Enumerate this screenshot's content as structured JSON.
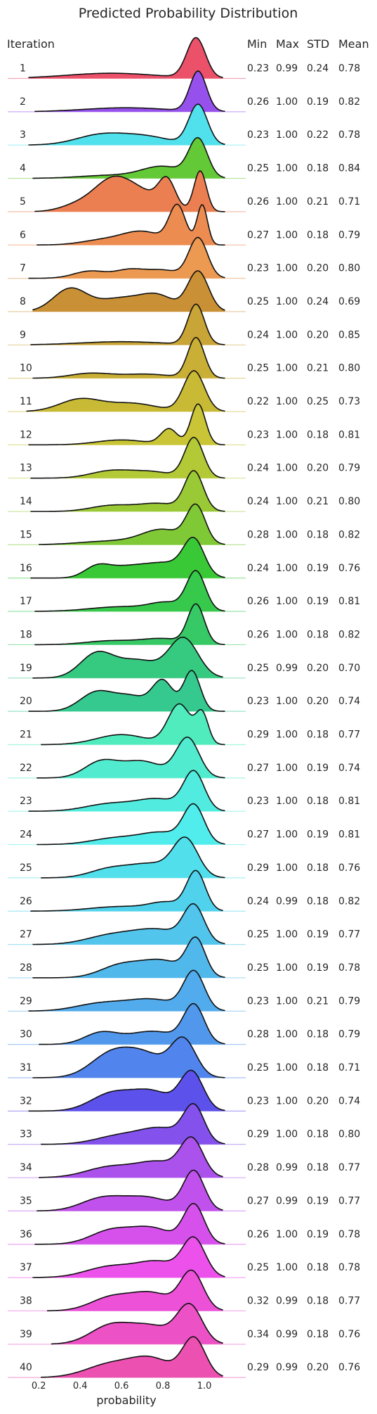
{
  "chart_data": {
    "type": "ridgeline",
    "title": "Predicted Probability Distribution",
    "xlabel": "probability",
    "row_header": "Iteration",
    "stat_headers": [
      "Min",
      "Max",
      "STD",
      "Mean"
    ],
    "x_ticks": [
      "0.2",
      "0.4",
      "0.6",
      "0.8",
      "1.0"
    ],
    "x_tick_values": [
      0.2,
      0.4,
      0.6,
      0.8,
      1.0
    ],
    "xlim": [
      0.05,
      1.2
    ],
    "palette": "husl (red → orange → olive → green → teal → blue → violet → pink)",
    "rows": [
      {
        "iteration": "1",
        "min": "0.23",
        "max": "0.99",
        "std": "0.24",
        "mean": "0.78",
        "peaks": [
          [
            0.96,
            0.045,
            1.0
          ],
          [
            0.55,
            0.22,
            0.13
          ]
        ]
      },
      {
        "iteration": "2",
        "min": "0.26",
        "max": "1.00",
        "std": "0.19",
        "mean": "0.82",
        "peaks": [
          [
            0.97,
            0.04,
            1.0
          ],
          [
            0.62,
            0.2,
            0.1
          ]
        ]
      },
      {
        "iteration": "3",
        "min": "0.23",
        "max": "1.00",
        "std": "0.22",
        "mean": "0.78",
        "peaks": [
          [
            0.97,
            0.045,
            1.0
          ],
          [
            0.5,
            0.12,
            0.25
          ],
          [
            0.72,
            0.12,
            0.2
          ]
        ]
      },
      {
        "iteration": "4",
        "min": "0.25",
        "max": "1.00",
        "std": "0.18",
        "mean": "0.84",
        "peaks": [
          [
            0.97,
            0.045,
            1.0
          ],
          [
            0.8,
            0.1,
            0.3
          ],
          [
            0.55,
            0.15,
            0.08
          ]
        ]
      },
      {
        "iteration": "5",
        "min": "0.26",
        "max": "1.00",
        "std": "0.21",
        "mean": "0.71",
        "peaks": [
          [
            0.55,
            0.09,
            0.6
          ],
          [
            0.82,
            0.04,
            0.55
          ],
          [
            0.98,
            0.03,
            0.85
          ],
          [
            0.7,
            0.1,
            0.35
          ],
          [
            0.38,
            0.08,
            0.12
          ]
        ]
      },
      {
        "iteration": "6",
        "min": "0.27",
        "max": "1.00",
        "std": "0.18",
        "mean": "0.79",
        "peaks": [
          [
            0.87,
            0.04,
            0.85
          ],
          [
            0.99,
            0.025,
            0.9
          ],
          [
            0.7,
            0.1,
            0.3
          ],
          [
            0.5,
            0.1,
            0.1
          ]
        ]
      },
      {
        "iteration": "7",
        "min": "0.23",
        "max": "1.00",
        "std": "0.20",
        "mean": "0.80",
        "peaks": [
          [
            0.97,
            0.045,
            1.0
          ],
          [
            0.45,
            0.08,
            0.18
          ],
          [
            0.64,
            0.07,
            0.2
          ],
          [
            0.8,
            0.08,
            0.2
          ]
        ]
      },
      {
        "iteration": "8",
        "min": "0.25",
        "max": "1.00",
        "std": "0.24",
        "mean": "0.69",
        "peaks": [
          [
            0.35,
            0.08,
            0.5
          ],
          [
            0.97,
            0.05,
            0.9
          ],
          [
            0.6,
            0.12,
            0.3
          ],
          [
            0.78,
            0.08,
            0.3
          ]
        ]
      },
      {
        "iteration": "9",
        "min": "0.24",
        "max": "1.00",
        "std": "0.20",
        "mean": "0.85",
        "peaks": [
          [
            0.96,
            0.04,
            1.0
          ],
          [
            0.6,
            0.2,
            0.08
          ]
        ]
      },
      {
        "iteration": "10",
        "min": "0.25",
        "max": "1.00",
        "std": "0.21",
        "mean": "0.80",
        "peaks": [
          [
            0.96,
            0.04,
            1.0
          ],
          [
            0.45,
            0.1,
            0.12
          ],
          [
            0.72,
            0.12,
            0.1
          ]
        ]
      },
      {
        "iteration": "11",
        "min": "0.22",
        "max": "1.00",
        "std": "0.25",
        "mean": "0.73",
        "peaks": [
          [
            0.95,
            0.05,
            1.0
          ],
          [
            0.4,
            0.1,
            0.3
          ],
          [
            0.65,
            0.12,
            0.2
          ]
        ]
      },
      {
        "iteration": "12",
        "min": "0.23",
        "max": "1.00",
        "std": "0.18",
        "mean": "0.81",
        "peaks": [
          [
            0.97,
            0.035,
            1.0
          ],
          [
            0.83,
            0.04,
            0.38
          ],
          [
            0.6,
            0.12,
            0.12
          ]
        ]
      },
      {
        "iteration": "13",
        "min": "0.24",
        "max": "1.00",
        "std": "0.20",
        "mean": "0.79",
        "peaks": [
          [
            0.95,
            0.045,
            1.0
          ],
          [
            0.55,
            0.1,
            0.18
          ],
          [
            0.75,
            0.1,
            0.15
          ]
        ]
      },
      {
        "iteration": "14",
        "min": "0.24",
        "max": "1.00",
        "std": "0.21",
        "mean": "0.80",
        "peaks": [
          [
            0.95,
            0.045,
            1.0
          ],
          [
            0.55,
            0.1,
            0.15
          ],
          [
            0.78,
            0.1,
            0.2
          ]
        ]
      },
      {
        "iteration": "15",
        "min": "0.28",
        "max": "1.00",
        "std": "0.18",
        "mean": "0.82",
        "peaks": [
          [
            0.96,
            0.045,
            1.0
          ],
          [
            0.8,
            0.1,
            0.4
          ],
          [
            0.55,
            0.15,
            0.1
          ]
        ]
      },
      {
        "iteration": "16",
        "min": "0.24",
        "max": "1.00",
        "std": "0.19",
        "mean": "0.76",
        "peaks": [
          [
            0.95,
            0.05,
            1.0
          ],
          [
            0.48,
            0.06,
            0.28
          ],
          [
            0.62,
            0.1,
            0.3
          ],
          [
            0.82,
            0.1,
            0.4
          ]
        ]
      },
      {
        "iteration": "17",
        "min": "0.26",
        "max": "1.00",
        "std": "0.19",
        "mean": "0.81",
        "peaks": [
          [
            0.96,
            0.045,
            1.0
          ],
          [
            0.6,
            0.15,
            0.12
          ],
          [
            0.82,
            0.08,
            0.2
          ]
        ]
      },
      {
        "iteration": "18",
        "min": "0.26",
        "max": "1.00",
        "std": "0.18",
        "mean": "0.82",
        "peaks": [
          [
            0.96,
            0.04,
            1.0
          ],
          [
            0.55,
            0.12,
            0.1
          ],
          [
            0.8,
            0.1,
            0.15
          ]
        ]
      },
      {
        "iteration": "19",
        "min": "0.25",
        "max": "0.99",
        "std": "0.20",
        "mean": "0.70",
        "peaks": [
          [
            0.48,
            0.08,
            0.55
          ],
          [
            0.9,
            0.07,
            0.9
          ],
          [
            0.68,
            0.1,
            0.4
          ]
        ]
      },
      {
        "iteration": "20",
        "min": "0.23",
        "max": "1.00",
        "std": "0.20",
        "mean": "0.74",
        "peaks": [
          [
            0.48,
            0.08,
            0.4
          ],
          [
            0.8,
            0.05,
            0.62
          ],
          [
            0.94,
            0.04,
            0.85
          ],
          [
            0.65,
            0.08,
            0.3
          ]
        ]
      },
      {
        "iteration": "21",
        "min": "0.29",
        "max": "1.00",
        "std": "0.18",
        "mean": "0.77",
        "peaks": [
          [
            0.88,
            0.055,
            1.0
          ],
          [
            0.99,
            0.03,
            0.72
          ],
          [
            0.6,
            0.12,
            0.25
          ]
        ]
      },
      {
        "iteration": "22",
        "min": "0.27",
        "max": "1.00",
        "std": "0.19",
        "mean": "0.74",
        "peaks": [
          [
            0.92,
            0.055,
            0.95
          ],
          [
            0.5,
            0.08,
            0.38
          ],
          [
            0.7,
            0.1,
            0.4
          ]
        ]
      },
      {
        "iteration": "23",
        "min": "0.23",
        "max": "1.00",
        "std": "0.18",
        "mean": "0.81",
        "peaks": [
          [
            0.95,
            0.05,
            1.0
          ],
          [
            0.55,
            0.12,
            0.2
          ],
          [
            0.78,
            0.1,
            0.3
          ]
        ]
      },
      {
        "iteration": "24",
        "min": "0.27",
        "max": "1.00",
        "std": "0.19",
        "mean": "0.81",
        "peaks": [
          [
            0.95,
            0.05,
            1.0
          ],
          [
            0.58,
            0.12,
            0.18
          ],
          [
            0.8,
            0.1,
            0.3
          ]
        ]
      },
      {
        "iteration": "25",
        "min": "0.29",
        "max": "1.00",
        "std": "0.18",
        "mean": "0.76",
        "peaks": [
          [
            0.91,
            0.06,
            1.0
          ],
          [
            0.55,
            0.1,
            0.25
          ],
          [
            0.75,
            0.1,
            0.35
          ]
        ]
      },
      {
        "iteration": "26",
        "min": "0.24",
        "max": "0.99",
        "std": "0.18",
        "mean": "0.82",
        "peaks": [
          [
            0.96,
            0.045,
            1.0
          ],
          [
            0.6,
            0.15,
            0.12
          ],
          [
            0.82,
            0.08,
            0.2
          ]
        ]
      },
      {
        "iteration": "27",
        "min": "0.25",
        "max": "1.00",
        "std": "0.19",
        "mean": "0.77",
        "peaks": [
          [
            0.95,
            0.05,
            1.0
          ],
          [
            0.55,
            0.12,
            0.25
          ],
          [
            0.78,
            0.12,
            0.4
          ]
        ]
      },
      {
        "iteration": "28",
        "min": "0.25",
        "max": "1.00",
        "std": "0.19",
        "mean": "0.78",
        "peaks": [
          [
            0.96,
            0.045,
            1.0
          ],
          [
            0.6,
            0.1,
            0.35
          ],
          [
            0.8,
            0.1,
            0.45
          ]
        ]
      },
      {
        "iteration": "29",
        "min": "0.23",
        "max": "1.00",
        "std": "0.21",
        "mean": "0.79",
        "peaks": [
          [
            0.95,
            0.05,
            1.0
          ],
          [
            0.5,
            0.12,
            0.2
          ],
          [
            0.75,
            0.12,
            0.3
          ]
        ]
      },
      {
        "iteration": "30",
        "min": "0.28",
        "max": "1.00",
        "std": "0.18",
        "mean": "0.79",
        "peaks": [
          [
            0.95,
            0.05,
            1.0
          ],
          [
            0.5,
            0.08,
            0.3
          ],
          [
            0.75,
            0.12,
            0.35
          ]
        ]
      },
      {
        "iteration": "31",
        "min": "0.25",
        "max": "1.00",
        "std": "0.18",
        "mean": "0.71",
        "peaks": [
          [
            0.9,
            0.06,
            0.95
          ],
          [
            0.55,
            0.1,
            0.6
          ],
          [
            0.72,
            0.1,
            0.55
          ]
        ]
      },
      {
        "iteration": "32",
        "min": "0.23",
        "max": "1.00",
        "std": "0.20",
        "mean": "0.74",
        "peaks": [
          [
            0.94,
            0.055,
            1.0
          ],
          [
            0.55,
            0.1,
            0.45
          ],
          [
            0.75,
            0.1,
            0.5
          ]
        ]
      },
      {
        "iteration": "33",
        "min": "0.29",
        "max": "1.00",
        "std": "0.18",
        "mean": "0.80",
        "peaks": [
          [
            0.95,
            0.05,
            1.0
          ],
          [
            0.6,
            0.12,
            0.25
          ],
          [
            0.8,
            0.1,
            0.4
          ]
        ]
      },
      {
        "iteration": "34",
        "min": "0.28",
        "max": "0.99",
        "std": "0.18",
        "mean": "0.77",
        "peaks": [
          [
            0.94,
            0.055,
            1.0
          ],
          [
            0.55,
            0.12,
            0.3
          ],
          [
            0.78,
            0.1,
            0.4
          ]
        ]
      },
      {
        "iteration": "35",
        "min": "0.27",
        "max": "0.99",
        "std": "0.19",
        "mean": "0.77",
        "peaks": [
          [
            0.95,
            0.05,
            1.0
          ],
          [
            0.5,
            0.1,
            0.3
          ],
          [
            0.72,
            0.12,
            0.35
          ]
        ]
      },
      {
        "iteration": "36",
        "min": "0.26",
        "max": "1.00",
        "std": "0.19",
        "mean": "0.78",
        "peaks": [
          [
            0.95,
            0.05,
            1.0
          ],
          [
            0.55,
            0.1,
            0.35
          ],
          [
            0.75,
            0.1,
            0.4
          ]
        ]
      },
      {
        "iteration": "37",
        "min": "0.25",
        "max": "1.00",
        "std": "0.18",
        "mean": "0.78",
        "peaks": [
          [
            0.95,
            0.055,
            1.0
          ],
          [
            0.55,
            0.12,
            0.3
          ],
          [
            0.78,
            0.1,
            0.4
          ]
        ]
      },
      {
        "iteration": "38",
        "min": "0.32",
        "max": "0.99",
        "std": "0.18",
        "mean": "0.77",
        "peaks": [
          [
            0.94,
            0.055,
            1.0
          ],
          [
            0.55,
            0.1,
            0.35
          ],
          [
            0.75,
            0.1,
            0.45
          ]
        ]
      },
      {
        "iteration": "39",
        "min": "0.34",
        "max": "0.99",
        "std": "0.18",
        "mean": "0.76",
        "peaks": [
          [
            0.93,
            0.06,
            1.0
          ],
          [
            0.55,
            0.1,
            0.5
          ],
          [
            0.75,
            0.1,
            0.45
          ]
        ]
      },
      {
        "iteration": "40",
        "min": "0.29",
        "max": "0.99",
        "std": "0.20",
        "mean": "0.76",
        "peaks": [
          [
            0.95,
            0.055,
            1.0
          ],
          [
            0.55,
            0.12,
            0.35
          ],
          [
            0.75,
            0.1,
            0.45
          ]
        ]
      }
    ]
  }
}
